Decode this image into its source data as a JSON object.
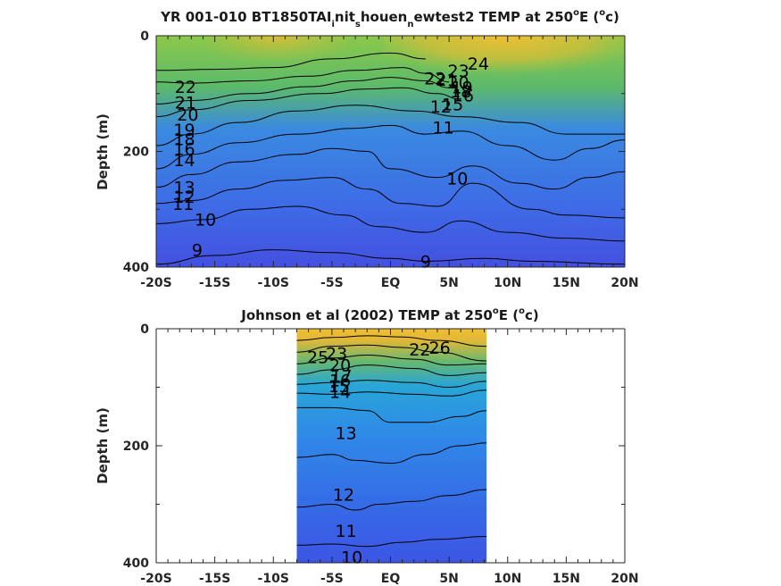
{
  "chart_data": [
    {
      "type": "heatmap",
      "title_parts": [
        "YR 001-010 BT1850TAI",
        "i",
        "nit",
        "s",
        "houen",
        "n",
        "ewtest2 TEMP at 250",
        "o",
        "E (",
        "o",
        "c)"
      ],
      "xlabel": "",
      "ylabel": "Depth (m)",
      "xlim": [
        -20,
        20
      ],
      "ylim": [
        400,
        0
      ],
      "xticks": [
        "-20S",
        "-15S",
        "-10S",
        "-5S",
        "EQ",
        "5N",
        "10N",
        "15N",
        "20N"
      ],
      "yticks": [
        "0",
        "200",
        "400"
      ],
      "data_xrange": [
        -20,
        20
      ],
      "colors": {
        "surface_warm": "#e8b83a",
        "surface_green": "#8cc84a",
        "mid": "#3a76e8",
        "deep": "#4450e0"
      },
      "contour_labels": [
        {
          "text": "22",
          "x": -17.5,
          "y": 88
        },
        {
          "text": "21",
          "x": -17.5,
          "y": 115
        },
        {
          "text": "20",
          "x": -17.3,
          "y": 136
        },
        {
          "text": "19",
          "x": -17.6,
          "y": 162
        },
        {
          "text": "18",
          "x": -17.6,
          "y": 178
        },
        {
          "text": "16",
          "x": -17.6,
          "y": 195
        },
        {
          "text": "14",
          "x": -17.6,
          "y": 215
        },
        {
          "text": "13",
          "x": -17.6,
          "y": 262
        },
        {
          "text": "12",
          "x": -17.6,
          "y": 278
        },
        {
          "text": "11",
          "x": -17.7,
          "y": 290
        },
        {
          "text": "10",
          "x": -15.8,
          "y": 317
        },
        {
          "text": "9",
          "x": -16.5,
          "y": 370
        },
        {
          "text": "24",
          "x": 7.5,
          "y": 48
        },
        {
          "text": "23",
          "x": 5.8,
          "y": 60
        },
        {
          "text": "22",
          "x": 3.8,
          "y": 73
        },
        {
          "text": "21",
          "x": 4.8,
          "y": 76
        },
        {
          "text": "20",
          "x": 5.8,
          "y": 80
        },
        {
          "text": "19",
          "x": 6.1,
          "y": 89
        },
        {
          "text": "18",
          "x": 6.0,
          "y": 96
        },
        {
          "text": "16",
          "x": 6.2,
          "y": 103
        },
        {
          "text": "15",
          "x": 5.3,
          "y": 118
        },
        {
          "text": "12",
          "x": 4.3,
          "y": 122
        },
        {
          "text": "11",
          "x": 4.5,
          "y": 158
        },
        {
          "text": "10",
          "x": 5.7,
          "y": 246
        },
        {
          "text": "9",
          "x": 3.0,
          "y": 390
        }
      ],
      "contours": [
        [
          [
            -20,
            60
          ],
          [
            -15,
            58
          ],
          [
            -10,
            55
          ],
          [
            -5,
            40
          ],
          [
            0,
            30
          ],
          [
            3,
            40
          ]
        ],
        [
          [
            -20,
            80
          ],
          [
            -17,
            82
          ],
          [
            -12,
            78
          ],
          [
            -7,
            70
          ],
          [
            -3,
            60
          ],
          [
            1,
            55
          ],
          [
            3,
            65
          ],
          [
            5,
            80
          ]
        ],
        [
          [
            -20,
            118
          ],
          [
            -17,
            112
          ],
          [
            -12,
            100
          ],
          [
            -7,
            88
          ],
          [
            -3,
            78
          ],
          [
            0,
            72
          ],
          [
            3,
            78
          ],
          [
            5,
            90
          ]
        ],
        [
          [
            -20,
            140
          ],
          [
            -17,
            128
          ],
          [
            -12,
            112
          ],
          [
            -6,
            100
          ],
          [
            -2,
            92
          ],
          [
            1,
            90
          ],
          [
            4,
            100
          ],
          [
            6,
            110
          ]
        ],
        [
          [
            -20,
            190
          ],
          [
            -17,
            170
          ],
          [
            -13,
            150
          ],
          [
            -8,
            130
          ],
          [
            -3,
            120
          ],
          [
            2,
            130
          ],
          [
            6,
            140
          ],
          [
            11,
            150
          ],
          [
            15,
            170
          ],
          [
            20,
            170
          ]
        ],
        [
          [
            -20,
            230
          ],
          [
            -17,
            205
          ],
          [
            -13,
            185
          ],
          [
            -8,
            170
          ],
          [
            -3,
            160
          ],
          [
            0,
            155
          ],
          [
            3,
            170
          ],
          [
            6,
            165
          ],
          [
            10,
            190
          ],
          [
            14,
            215
          ],
          [
            17,
            195
          ],
          [
            20,
            180
          ]
        ],
        [
          [
            -20,
            262
          ],
          [
            -17,
            240
          ],
          [
            -13,
            218
          ],
          [
            -8,
            205
          ],
          [
            -5,
            195
          ],
          [
            -2,
            200
          ],
          [
            0,
            230
          ],
          [
            4,
            245
          ],
          [
            7,
            225
          ],
          [
            11,
            255
          ],
          [
            14,
            265
          ],
          [
            17,
            245
          ],
          [
            20,
            235
          ]
        ],
        [
          [
            -20,
            290
          ],
          [
            -17,
            285
          ],
          [
            -13,
            265
          ],
          [
            -9,
            250
          ],
          [
            -5,
            245
          ],
          [
            -2,
            265
          ],
          [
            1,
            290
          ],
          [
            4,
            295
          ],
          [
            7,
            255
          ],
          [
            12,
            300
          ],
          [
            15,
            310
          ],
          [
            20,
            315
          ]
        ],
        [
          [
            -20,
            325
          ],
          [
            -16,
            318
          ],
          [
            -12,
            300
          ],
          [
            -8,
            295
          ],
          [
            -4,
            310
          ],
          [
            -1,
            330
          ],
          [
            3,
            340
          ],
          [
            6,
            320
          ],
          [
            10,
            340
          ],
          [
            15,
            350
          ],
          [
            20,
            355
          ]
        ],
        [
          [
            -20,
            395
          ],
          [
            -15,
            380
          ],
          [
            -10,
            370
          ],
          [
            -5,
            375
          ],
          [
            0,
            385
          ],
          [
            3,
            390
          ],
          [
            8,
            385
          ],
          [
            12,
            390
          ],
          [
            20,
            395
          ]
        ]
      ]
    },
    {
      "type": "heatmap",
      "title_parts": [
        "Johnson et al (2002) TEMP at 250",
        "o",
        "E (",
        "o",
        "c)"
      ],
      "xlabel": "",
      "ylabel": "Depth (m)",
      "xlim": [
        -20,
        20
      ],
      "ylim": [
        400,
        0
      ],
      "xticks": [
        "-20S",
        "-15S",
        "-10S",
        "-5S",
        "EQ",
        "5N",
        "10N",
        "15N",
        "20N"
      ],
      "yticks": [
        "0",
        "200",
        "400"
      ],
      "data_xrange": [
        -8,
        8.2
      ],
      "colors": {
        "surface_warm": "#f0bf32",
        "mid": "#2f8ae8",
        "deep": "#3c5ce6"
      },
      "contour_labels": [
        {
          "text": "25",
          "x": -6.2,
          "y": 48
        },
        {
          "text": "23",
          "x": -4.6,
          "y": 42
        },
        {
          "text": "20",
          "x": -4.3,
          "y": 62
        },
        {
          "text": "17",
          "x": -4.2,
          "y": 80
        },
        {
          "text": "16",
          "x": -4.3,
          "y": 88
        },
        {
          "text": "15",
          "x": -4.4,
          "y": 98
        },
        {
          "text": "14",
          "x": -4.3,
          "y": 108
        },
        {
          "text": "22",
          "x": 2.5,
          "y": 35
        },
        {
          "text": "26",
          "x": 4.2,
          "y": 32
        },
        {
          "text": "13",
          "x": -3.8,
          "y": 178
        },
        {
          "text": "12",
          "x": -4.0,
          "y": 283
        },
        {
          "text": "11",
          "x": -3.8,
          "y": 345
        },
        {
          "text": "10",
          "x": -3.3,
          "y": 390
        }
      ],
      "contours": [
        [
          [
            -8,
            20
          ],
          [
            -5,
            15
          ],
          [
            -2,
            12
          ],
          [
            1,
            14
          ],
          [
            4,
            20
          ],
          [
            8.2,
            30
          ]
        ],
        [
          [
            -8,
            40
          ],
          [
            -5,
            30
          ],
          [
            -2,
            28
          ],
          [
            1,
            32
          ],
          [
            4,
            40
          ],
          [
            8.2,
            55
          ]
        ],
        [
          [
            -8,
            60
          ],
          [
            -5,
            50
          ],
          [
            -2,
            45
          ],
          [
            2,
            52
          ],
          [
            5,
            62
          ],
          [
            8.2,
            60
          ]
        ],
        [
          [
            -8,
            78
          ],
          [
            -5,
            70
          ],
          [
            -2,
            62
          ],
          [
            2,
            68
          ],
          [
            5,
            80
          ],
          [
            8.2,
            75
          ]
        ],
        [
          [
            -8,
            95
          ],
          [
            -5,
            92
          ],
          [
            -2,
            88
          ],
          [
            2,
            92
          ],
          [
            5,
            100
          ],
          [
            8.2,
            90
          ]
        ],
        [
          [
            -8,
            110
          ],
          [
            -5,
            112
          ],
          [
            -2,
            108
          ],
          [
            2,
            112
          ],
          [
            5,
            115
          ],
          [
            8.2,
            105
          ]
        ],
        [
          [
            -8,
            135
          ],
          [
            -5,
            135
          ],
          [
            -2,
            140
          ],
          [
            0,
            160
          ],
          [
            3,
            160
          ],
          [
            6,
            150
          ],
          [
            8.2,
            140
          ]
        ],
        [
          [
            -8,
            220
          ],
          [
            -5,
            215
          ],
          [
            -3,
            225
          ],
          [
            0,
            230
          ],
          [
            3,
            215
          ],
          [
            6,
            200
          ],
          [
            8.2,
            195
          ]
        ],
        [
          [
            -8,
            305
          ],
          [
            -5,
            300
          ],
          [
            -3,
            310
          ],
          [
            -1,
            300
          ],
          [
            2,
            295
          ],
          [
            5,
            285
          ],
          [
            8.2,
            275
          ]
        ],
        [
          [
            -8,
            370
          ],
          [
            -5,
            368
          ],
          [
            -2,
            372
          ],
          [
            1,
            365
          ],
          [
            4,
            360
          ],
          [
            8.2,
            355
          ]
        ]
      ]
    }
  ]
}
